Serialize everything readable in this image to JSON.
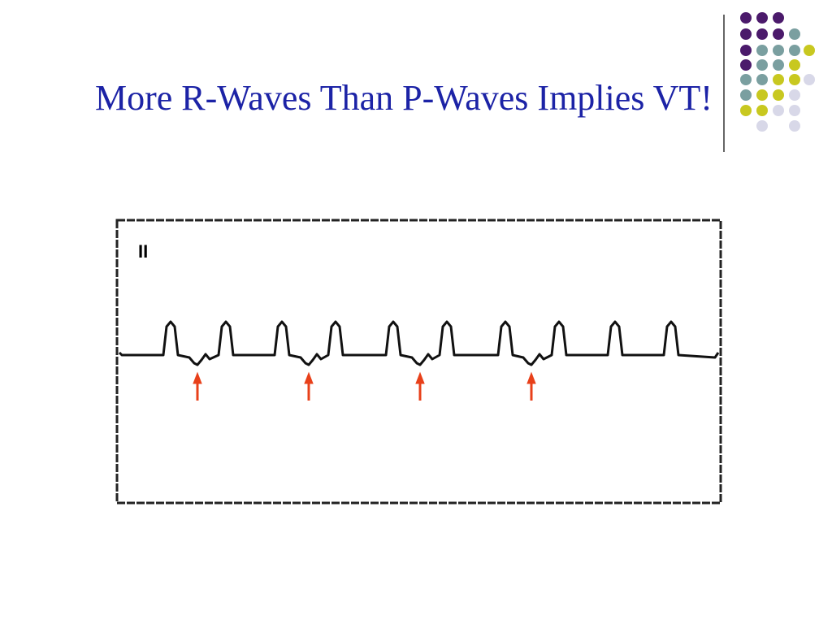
{
  "slide": {
    "title": "More R-Waves Than P-Waves Implies VT!",
    "ecg_lead": "II"
  }
}
